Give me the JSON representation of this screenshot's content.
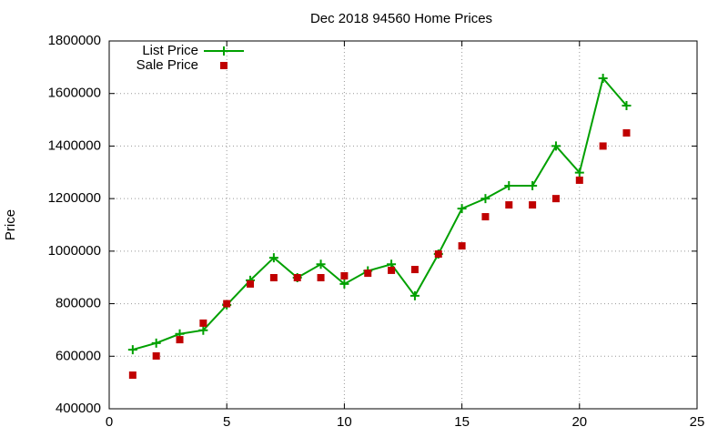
{
  "chart_data": {
    "type": "line",
    "title": "Dec 2018 94560 Home Prices",
    "y_label": "Price",
    "x": [
      1,
      2,
      3,
      4,
      5,
      6,
      7,
      8,
      9,
      10,
      11,
      12,
      13,
      14,
      15,
      16,
      17,
      18,
      19,
      20,
      21,
      22
    ],
    "series": [
      {
        "name": "List Price",
        "color": "#00a000",
        "style": "linespoints",
        "values": [
          625000,
          650000,
          685000,
          699000,
          795000,
          889000,
          975000,
          899000,
          950000,
          875000,
          925000,
          950000,
          830000,
          989000,
          1162000,
          1200000,
          1249000,
          1249000,
          1400000,
          1299000,
          1658000,
          1554000
        ]
      },
      {
        "name": "Sale Price",
        "color": "#c00000",
        "style": "points",
        "values": [
          528000,
          601000,
          663000,
          726000,
          800000,
          875000,
          899000,
          899000,
          899000,
          906000,
          916000,
          927000,
          930000,
          989000,
          1020000,
          1131000,
          1176000,
          1176000,
          1200000,
          1270000,
          1400000,
          1450000
        ]
      }
    ],
    "xlim": [
      0,
      25
    ],
    "xticks": [
      0,
      5,
      10,
      15,
      20,
      25
    ],
    "ylim": [
      400000,
      1800000
    ],
    "yticks": [
      400000,
      600000,
      800000,
      1000000,
      1200000,
      1400000,
      1600000,
      1800000
    ],
    "grid": true,
    "legend": "top-left"
  }
}
